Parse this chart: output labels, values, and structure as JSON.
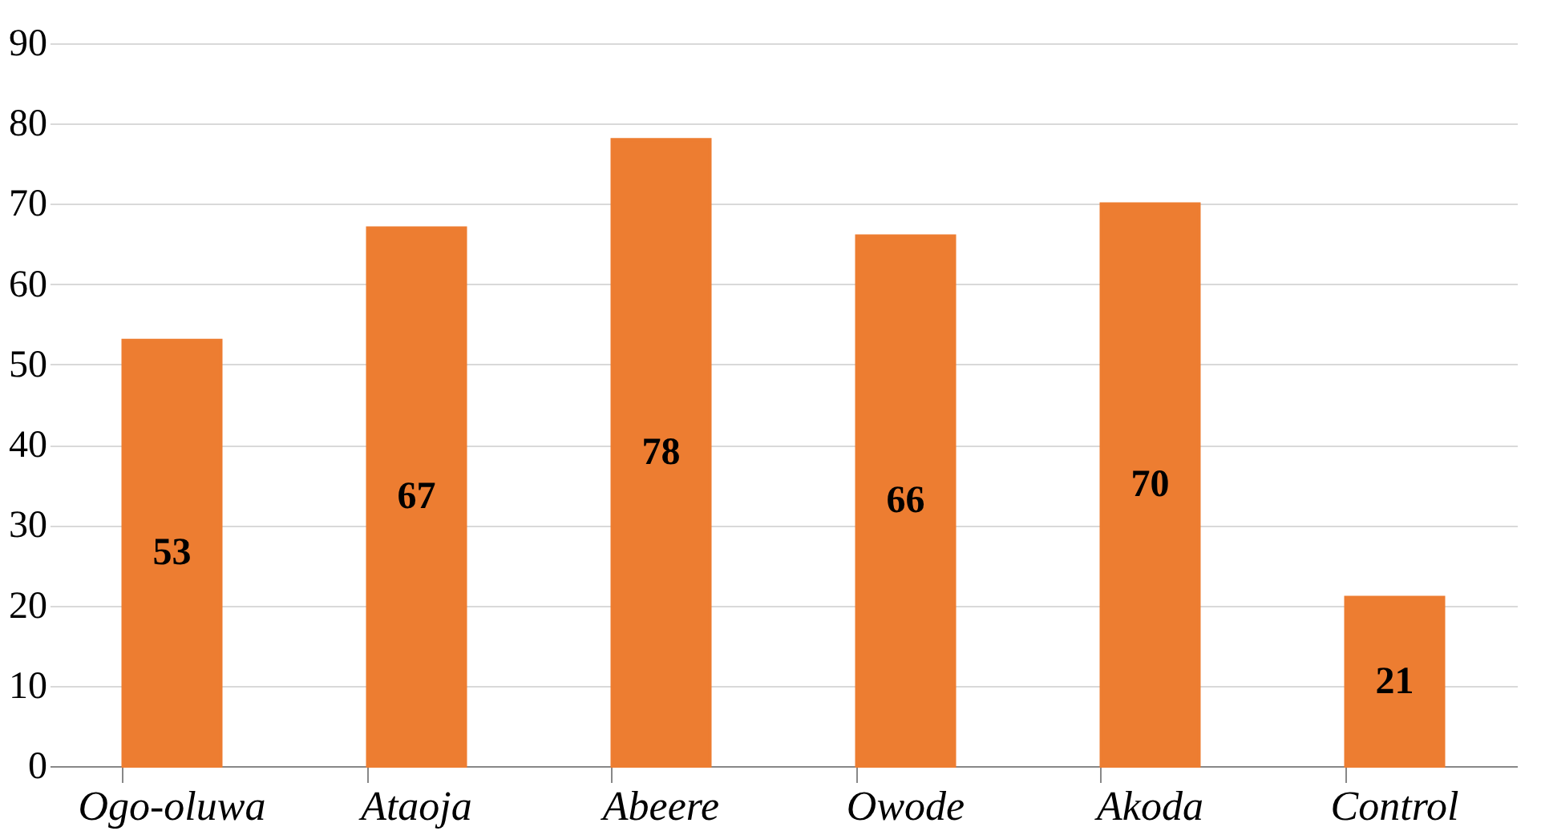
{
  "chart_data": {
    "type": "bar",
    "categories": [
      "Ogo-oluwa",
      "Ataoja",
      "Abeere",
      "Owode",
      "Akoda",
      "Control"
    ],
    "values": [
      53,
      67,
      78,
      66,
      70,
      21
    ],
    "color": "#ed7d31",
    "ylim": [
      0,
      90
    ],
    "yticks": [
      0,
      10,
      20,
      30,
      40,
      50,
      60,
      70,
      80,
      90
    ],
    "grid": "y",
    "data_labels": true
  }
}
